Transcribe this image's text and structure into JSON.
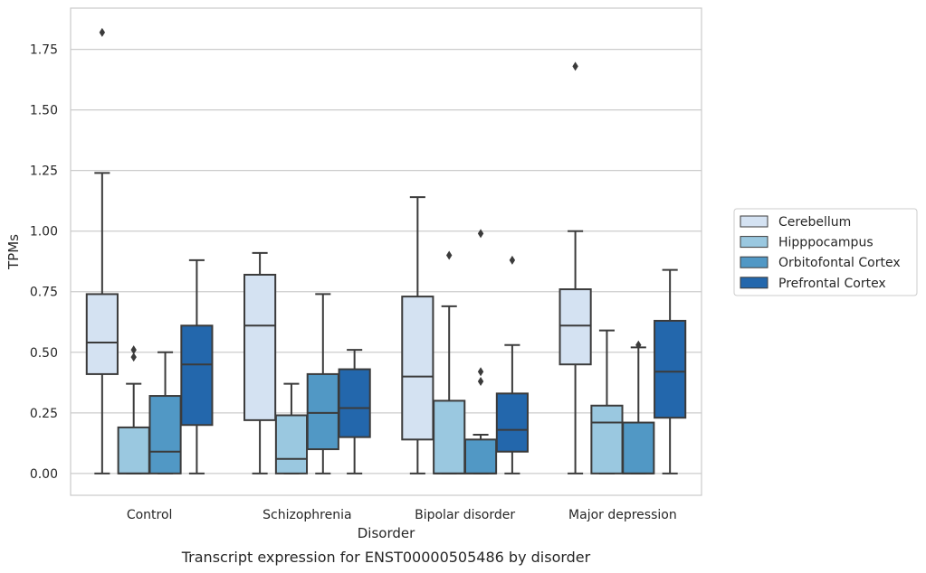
{
  "caption": "Transcript expression for ENST00000505486 by disorder",
  "chart_data": {
    "type": "box",
    "xlabel": "Disorder",
    "ylabel": "TPMs",
    "ylim": [
      -0.09,
      1.92
    ],
    "yticks": [
      0.0,
      0.25,
      0.5,
      0.75,
      1.0,
      1.25,
      1.5,
      1.75
    ],
    "ytick_labels": [
      "0.00",
      "0.25",
      "0.50",
      "0.75",
      "1.00",
      "1.25",
      "1.50",
      "1.75"
    ],
    "grid": "horizontal",
    "legend_position": "right",
    "categories": [
      "Control",
      "Schizophrenia",
      "Bipolar disorder",
      "Major depression"
    ],
    "series": [
      {
        "name": "Cerebellum",
        "color": "#d4e2f2",
        "boxes": [
          {
            "whisker_low": 0.0,
            "q1": 0.41,
            "median": 0.54,
            "q3": 0.74,
            "whisker_high": 1.24,
            "outliers": [
              1.82
            ]
          },
          {
            "whisker_low": 0.0,
            "q1": 0.22,
            "median": 0.61,
            "q3": 0.82,
            "whisker_high": 0.91,
            "outliers": []
          },
          {
            "whisker_low": 0.0,
            "q1": 0.14,
            "median": 0.4,
            "q3": 0.73,
            "whisker_high": 1.14,
            "outliers": []
          },
          {
            "whisker_low": 0.0,
            "q1": 0.45,
            "median": 0.61,
            "q3": 0.76,
            "whisker_high": 1.0,
            "outliers": [
              1.68
            ]
          }
        ]
      },
      {
        "name": "Hipppocampus",
        "color": "#9ac8e0",
        "boxes": [
          {
            "whisker_low": 0.0,
            "q1": 0.0,
            "median": 0.0,
            "q3": 0.19,
            "whisker_high": 0.37,
            "outliers": [
              0.48,
              0.51
            ]
          },
          {
            "whisker_low": 0.0,
            "q1": 0.0,
            "median": 0.06,
            "q3": 0.24,
            "whisker_high": 0.37,
            "outliers": []
          },
          {
            "whisker_low": 0.0,
            "q1": 0.0,
            "median": 0.0,
            "q3": 0.3,
            "whisker_high": 0.69,
            "outliers": [
              0.9
            ]
          },
          {
            "whisker_low": 0.0,
            "q1": 0.0,
            "median": 0.21,
            "q3": 0.28,
            "whisker_high": 0.59,
            "outliers": []
          }
        ]
      },
      {
        "name": "Orbitofontal Cortex",
        "color": "#5198c5",
        "boxes": [
          {
            "whisker_low": 0.0,
            "q1": 0.0,
            "median": 0.09,
            "q3": 0.32,
            "whisker_high": 0.5,
            "outliers": []
          },
          {
            "whisker_low": 0.0,
            "q1": 0.1,
            "median": 0.25,
            "q3": 0.41,
            "whisker_high": 0.74,
            "outliers": []
          },
          {
            "whisker_low": 0.0,
            "q1": 0.0,
            "median": 0.0,
            "q3": 0.14,
            "whisker_high": 0.16,
            "outliers": [
              0.38,
              0.42,
              0.99
            ]
          },
          {
            "whisker_low": 0.0,
            "q1": 0.0,
            "median": 0.0,
            "q3": 0.21,
            "whisker_high": 0.52,
            "outliers": [
              0.53
            ]
          }
        ]
      },
      {
        "name": "Prefrontal Cortex",
        "color": "#2367ac",
        "boxes": [
          {
            "whisker_low": 0.0,
            "q1": 0.2,
            "median": 0.45,
            "q3": 0.61,
            "whisker_high": 0.88,
            "outliers": []
          },
          {
            "whisker_low": 0.0,
            "q1": 0.15,
            "median": 0.27,
            "q3": 0.43,
            "whisker_high": 0.51,
            "outliers": []
          },
          {
            "whisker_low": 0.0,
            "q1": 0.09,
            "median": 0.18,
            "q3": 0.33,
            "whisker_high": 0.53,
            "outliers": [
              0.88
            ]
          },
          {
            "whisker_low": 0.0,
            "q1": 0.23,
            "median": 0.42,
            "q3": 0.63,
            "whisker_high": 0.84,
            "outliers": []
          }
        ]
      }
    ]
  }
}
